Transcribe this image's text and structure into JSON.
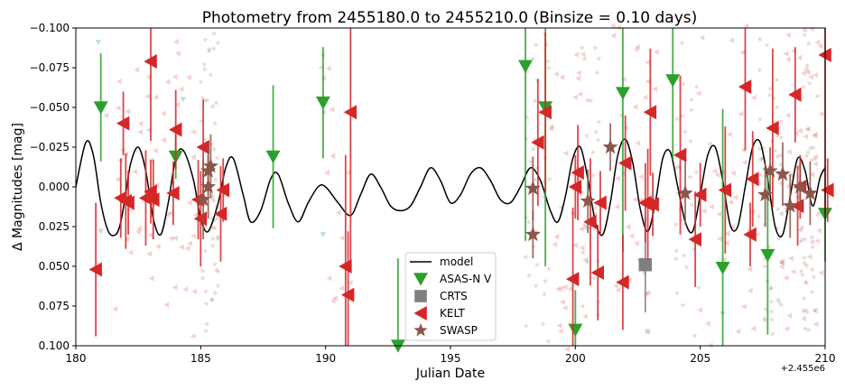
{
  "chart_data": {
    "type": "scatter",
    "title": "Photometry from 2455180.0 to 2455210.0 (Binsize = 0.10 days)",
    "xlabel": "Julian Date",
    "ylabel": "Δ Magnitudes [mag]",
    "x_offset_label": "+2.455e6",
    "xlim": [
      180,
      210
    ],
    "ylim": [
      -0.1,
      0.1
    ],
    "y_inverted": true,
    "x_ticks": [
      {
        "value": 180,
        "label": "180"
      },
      {
        "value": 185,
        "label": "185"
      },
      {
        "value": 190,
        "label": "190"
      },
      {
        "value": 195,
        "label": "195"
      },
      {
        "value": 200,
        "label": "200"
      },
      {
        "value": 205,
        "label": "205"
      },
      {
        "value": 210,
        "label": "210"
      }
    ],
    "y_ticks": [
      {
        "value": -0.1,
        "label": "−0.100"
      },
      {
        "value": -0.075,
        "label": "−0.075"
      },
      {
        "value": -0.05,
        "label": "−0.050"
      },
      {
        "value": -0.025,
        "label": "−0.025"
      },
      {
        "value": 0.0,
        "label": "0.000"
      },
      {
        "value": 0.025,
        "label": "0.025"
      },
      {
        "value": 0.05,
        "label": "0.050"
      },
      {
        "value": 0.075,
        "label": "0.075"
      },
      {
        "value": 0.1,
        "label": "0.100"
      }
    ],
    "legend_position": "lower-center",
    "legend": [
      {
        "name": "model",
        "marker": "line",
        "color": "#000000"
      },
      {
        "name": "ASAS-N V",
        "marker": "triangle-down",
        "color": "#2ca02c"
      },
      {
        "name": "CRTS",
        "marker": "square",
        "color": "#7f7f7f"
      },
      {
        "name": "KELT",
        "marker": "triangle-left",
        "color": "#d62728"
      },
      {
        "name": "SWASP",
        "marker": "star",
        "color": "#8c564b"
      }
    ],
    "model": {
      "color": "#000000",
      "x": [
        180.0,
        180.4,
        180.7,
        181.0,
        181.3,
        181.6,
        181.8,
        182.0,
        182.2,
        182.5,
        182.8,
        183.1,
        183.4,
        183.7,
        184.0,
        184.3,
        184.7,
        185.0,
        185.3,
        185.7,
        186.0,
        186.3,
        186.7,
        187.0,
        187.4,
        187.8,
        188.1,
        188.5,
        188.9,
        189.3,
        189.7,
        190.0,
        190.5,
        191.0,
        191.4,
        191.8,
        192.2,
        192.6,
        193.0,
        193.4,
        193.8,
        194.2,
        194.6,
        195.0,
        195.4,
        195.8,
        196.2,
        196.6,
        197.0,
        197.4,
        197.8,
        198.2,
        198.6,
        199.0,
        199.3,
        199.6,
        199.9,
        200.2,
        200.5,
        200.8,
        201.1,
        201.4,
        201.7,
        202.0,
        202.3,
        202.6,
        202.9,
        203.2,
        203.5,
        203.8,
        204.1,
        204.4,
        204.7,
        205.0,
        205.3,
        205.6,
        205.9,
        206.2,
        206.5,
        206.8,
        207.1,
        207.4,
        207.7,
        208.0,
        208.3,
        208.6,
        208.9,
        209.2,
        209.5,
        209.8,
        210.0
      ],
      "y": [
        0.0,
        -0.028,
        -0.02,
        0.01,
        0.028,
        0.03,
        0.022,
        0.004,
        -0.015,
        -0.025,
        -0.01,
        0.02,
        0.03,
        0.01,
        -0.018,
        -0.023,
        -0.005,
        0.02,
        0.028,
        0.01,
        -0.012,
        -0.018,
        0.005,
        0.022,
        0.015,
        -0.005,
        -0.008,
        0.01,
        0.022,
        0.01,
        0.0,
        0.0,
        0.01,
        0.018,
        0.005,
        -0.008,
        0.0,
        0.012,
        0.015,
        0.012,
        0.0,
        -0.012,
        -0.004,
        0.01,
        0.005,
        -0.008,
        -0.012,
        -0.004,
        0.008,
        0.01,
        0.0,
        -0.012,
        -0.004,
        0.015,
        0.022,
        0.006,
        -0.018,
        -0.025,
        -0.005,
        0.022,
        0.03,
        0.01,
        -0.02,
        -0.03,
        -0.015,
        0.014,
        0.028,
        0.01,
        -0.018,
        -0.022,
        0.0,
        0.022,
        0.028,
        0.005,
        -0.02,
        -0.025,
        -0.004,
        0.024,
        0.025,
        0.0,
        -0.025,
        -0.028,
        -0.005,
        0.025,
        0.03,
        0.006,
        -0.018,
        -0.01,
        0.012,
        -0.006,
        -0.012
      ]
    },
    "series": [
      {
        "name": "ASAS-N V",
        "marker": "triangle-down",
        "color": "#2ca02c",
        "x": [
          181.0,
          184.0,
          187.9,
          189.9,
          192.9,
          198.0,
          198.8,
          200.0,
          201.9,
          203.9,
          205.9,
          207.7,
          210.0
        ],
        "y": [
          -0.05,
          -0.019,
          -0.019,
          -0.053,
          0.1,
          -0.076,
          -0.05,
          0.09,
          -0.059,
          -0.067,
          0.051,
          0.043,
          0.017
        ],
        "err": [
          0.034,
          0.014,
          0.045,
          0.035,
          0.055,
          0.11,
          0.1,
          0.025,
          0.1,
          0.05,
          0.1,
          0.05,
          0.03
        ]
      },
      {
        "name": "CRTS",
        "marker": "square",
        "color": "#7f7f7f",
        "x": [
          202.8
        ],
        "y": [
          0.049
        ],
        "err": [
          0.03
        ]
      },
      {
        "name": "KELT",
        "marker": "triangle-left",
        "color": "#d62728",
        "x": [
          180.8,
          181.8,
          181.9,
          182.0,
          182.1,
          182.8,
          183.0,
          183.0,
          183.1,
          183.9,
          184.0,
          184.9,
          185.0,
          185.1,
          185.8,
          185.9,
          190.8,
          190.9,
          191.0,
          198.5,
          198.8,
          199.9,
          200.0,
          200.1,
          200.6,
          200.9,
          201.0,
          201.9,
          202.0,
          202.8,
          202.9,
          203.0,
          203.1,
          204.2,
          204.8,
          205.0,
          206.0,
          206.8,
          207.0,
          207.1,
          207.9,
          208.8,
          208.9,
          209.0,
          210.0,
          210.1
        ],
        "y": [
          0.052,
          0.007,
          -0.04,
          0.009,
          0.01,
          0.007,
          0.003,
          -0.079,
          0.008,
          0.004,
          -0.036,
          0.008,
          0.02,
          -0.025,
          0.017,
          0.002,
          0.05,
          0.068,
          -0.047,
          -0.028,
          -0.047,
          0.058,
          0.0,
          -0.009,
          0.022,
          0.054,
          0.01,
          0.06,
          -0.015,
          0.01,
          0.011,
          -0.047,
          0.011,
          -0.02,
          0.033,
          0.005,
          0.002,
          -0.063,
          0.03,
          -0.005,
          -0.037,
          -0.058,
          0.012,
          0.0,
          -0.083,
          0.002
        ],
        "err": [
          0.042,
          0.025,
          0.02,
          0.03,
          0.02,
          0.03,
          0.02,
          0.05,
          0.025,
          0.02,
          0.025,
          0.025,
          0.03,
          0.03,
          0.03,
          0.02,
          0.07,
          0.04,
          0.1,
          0.04,
          0.05,
          0.045,
          0.02,
          0.03,
          0.04,
          0.03,
          0.02,
          0.03,
          0.03,
          0.025,
          0.035,
          0.04,
          0.02,
          0.05,
          0.03,
          0.02,
          0.04,
          0.04,
          0.02,
          0.03,
          0.05,
          0.03,
          0.025,
          0.02,
          0.1,
          0.02
        ]
      },
      {
        "name": "SWASP",
        "marker": "star",
        "color": "#8c564b",
        "x": [
          185.1,
          185.3,
          185.3,
          185.4,
          198.3,
          198.3,
          200.5,
          201.4,
          204.4,
          207.6,
          207.8,
          208.3,
          208.6,
          209.0,
          209.4
        ],
        "y": [
          0.008,
          -0.01,
          0.0,
          -0.013,
          0.001,
          0.03,
          0.009,
          -0.025,
          0.004,
          0.005,
          -0.01,
          -0.008,
          0.012,
          0.0,
          0.004
        ],
        "err": [
          0.025,
          0.015,
          0.02,
          0.02,
          0.02,
          0.015,
          0.02,
          0.015,
          0.02,
          0.02,
          0.015,
          0.02,
          0.02,
          0.015,
          0.02
        ]
      }
    ]
  }
}
